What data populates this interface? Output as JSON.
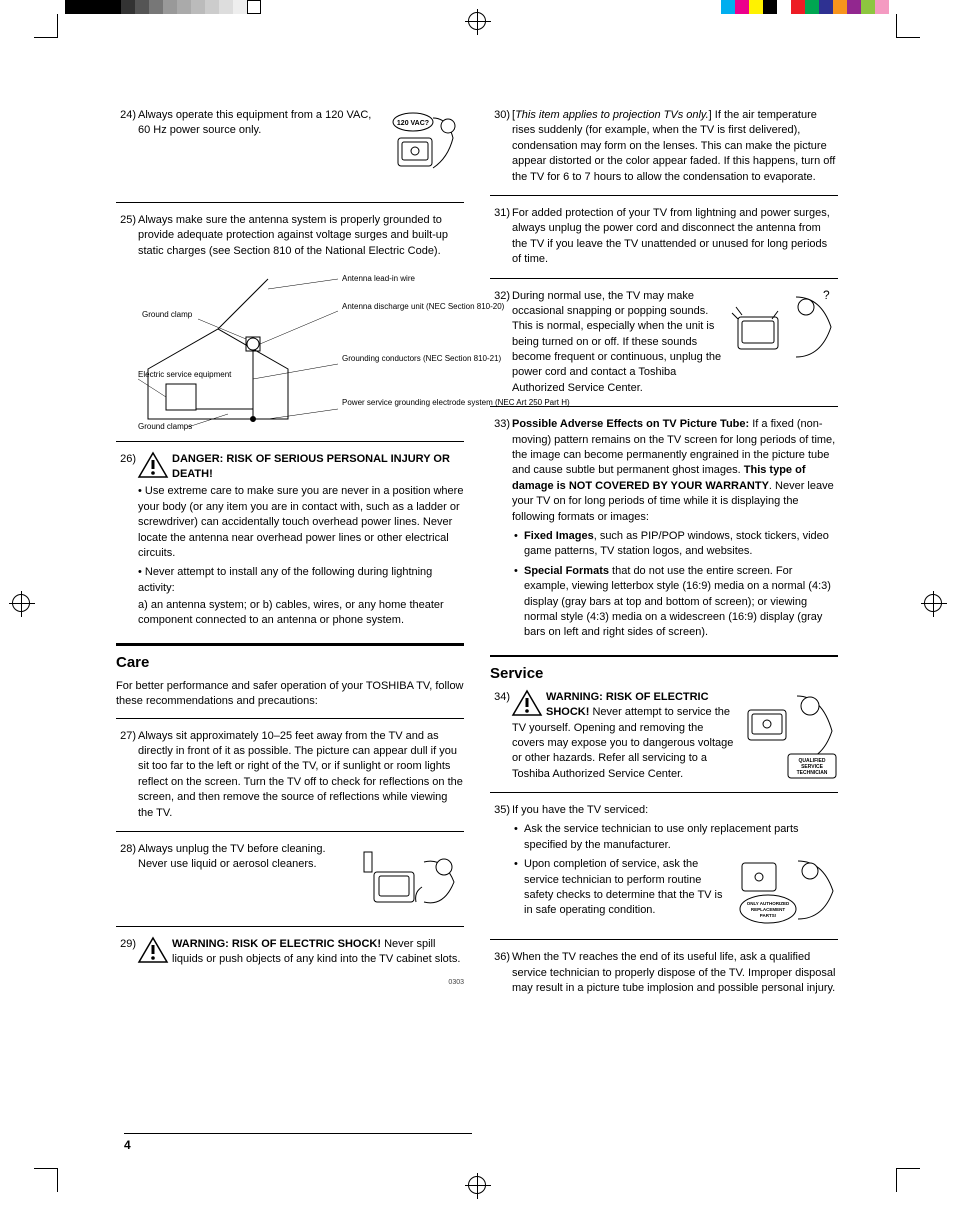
{
  "print_marks": {
    "left_colors": [
      "#000000",
      "#000000",
      "#000000",
      "#000000",
      "#333333",
      "#555555",
      "#777777",
      "#999999",
      "#aaaaaa",
      "#bbbbbb",
      "#cccccc",
      "#dddddd",
      "#eeeeee",
      "#ffffff"
    ],
    "right_colors": [
      "#00aeef",
      "#ec008c",
      "#fff200",
      "#000000",
      "#ffffff",
      "#ed1c24",
      "#00a651",
      "#2e3192",
      "#f7941d",
      "#92278f",
      "#8dc63f",
      "#f49ac1"
    ]
  },
  "page_number": "4",
  "doc_code": "0303",
  "left": {
    "i24": {
      "num": "24)",
      "text": "Always operate this equipment from a 120 VAC, 60 Hz power source only.",
      "bubble": "120 VAC?"
    },
    "i25": {
      "num": "25)",
      "text": "Always make sure the antenna system is properly grounded to provide adequate protection against voltage surges and built-up static charges (see Section 810 of the National Electric Code).",
      "labels": {
        "a": "Antenna lead-in wire",
        "b": "Antenna discharge unit (NEC Section 810-20)",
        "c": "Ground clamp",
        "d": "Grounding conductors (NEC Section 810-21)",
        "e": "Electric service equipment",
        "f": "Power service grounding electrode system (NEC Art 250 Part H)",
        "g": "Ground clamps"
      }
    },
    "i26": {
      "num": "26)",
      "title": "DANGER: RISK OF SERIOUS PERSONAL INJURY OR DEATH!",
      "p1": "• Use extreme care to make sure you are never in a position where your body (or any item you are in contact with, such as a ladder or screwdriver) can accidentally touch overhead power lines. Never locate the antenna near overhead power lines or other electrical circuits.",
      "p2": "• Never attempt to install any of the following during lightning activity:",
      "p3": "a) an antenna system; or b) cables, wires, or any home theater component connected to an antenna or phone system."
    },
    "care": {
      "title": "Care",
      "intro": "For better performance and safer operation of your TOSHIBA TV, follow these recommendations and precautions:"
    },
    "i27": {
      "num": "27)",
      "text": "Always sit approximately 10–25 feet away from the TV and as directly in front of it as possible. The picture can appear dull if you sit too far to the left or right of the TV, or if sunlight or room lights reflect on the screen. Turn the TV off to check for reflections on the screen, and then remove the source of reflections while viewing the TV."
    },
    "i28": {
      "num": "28)",
      "text": "Always unplug the TV before cleaning. Never use liquid or aerosol cleaners."
    },
    "i29": {
      "num": "29)",
      "title": "WARNING: RISK OF ELECTRIC SHOCK!",
      "text": "Never spill liquids or push objects of any kind into the TV cabinet slots."
    }
  },
  "right": {
    "i30": {
      "num": "30)",
      "lead": "[",
      "ital": "This item applies to projection TVs only.",
      "tail": "] If the air temperature rises suddenly (for example, when the TV is first delivered), condensation may form on the lenses. This can make the picture appear distorted or the color appear faded. If this happens, turn off the TV for 6 to 7 hours to allow the condensation to evaporate."
    },
    "i31": {
      "num": "31)",
      "text": "For added protection of your TV from lightning and power surges, always unplug the power cord and disconnect the antenna from the TV if you leave the TV unattended or unused for long periods of time."
    },
    "i32": {
      "num": "32)",
      "text": "During normal use, the TV may make occasional snapping or popping sounds. This is normal, especially when the unit is being turned on or off. If these sounds become frequent or continuous, unplug the power cord and contact a Toshiba Authorized Service Center."
    },
    "i33": {
      "num": "33)",
      "title": "Possible Adverse Effects on TV Picture Tube:",
      "p1": " If a fixed (non-moving) pattern remains on the TV screen for long periods of time, the image can become permanently engrained in the picture tube and cause subtle but permanent ghost images. ",
      "bold2": "This type of damage is NOT COVERED BY YOUR WARRANTY",
      "p2": ". Never leave your TV on for long periods of time while it is displaying the following formats or images:",
      "b1t": "Fixed Images",
      "b1": ", such as PIP/POP windows, stock tickers, video game patterns, TV station logos, and websites.",
      "b2t": "Special Formats",
      "b2": " that do not use the entire screen. For example, viewing letterbox style (16:9) media on a normal (4:3) display (gray bars at top and bottom of screen); or viewing normal style (4:3) media on a widescreen (16:9) display (gray bars on left and right sides of screen)."
    },
    "service": {
      "title": "Service"
    },
    "i34": {
      "num": "34)",
      "title": "WARNING: RISK OF ELECTRIC SHOCK!",
      "text": " Never attempt to service the TV yourself. Opening and removing the covers may expose you to dangerous voltage or other hazards. Refer all servicing to a Toshiba Authorized Service Center.",
      "badge": "QUALIFIED SERVICE TECHNICIAN"
    },
    "i35": {
      "num": "35)",
      "text": "If you have the TV serviced:",
      "b1": "Ask the service technician to use only replacement parts specified by the manufacturer.",
      "b2": "Upon completion of service, ask the service technician to perform routine safety checks to determine that the TV is in safe operating condition.",
      "badge": "ONLY AUTHORIZED REPLACEMENT PARTS!"
    },
    "i36": {
      "num": "36)",
      "text": "When the TV reaches the end of its useful life, ask a qualified service technician to properly dispose of the TV. Improper disposal may result in a picture tube implosion and possible personal injury."
    }
  }
}
